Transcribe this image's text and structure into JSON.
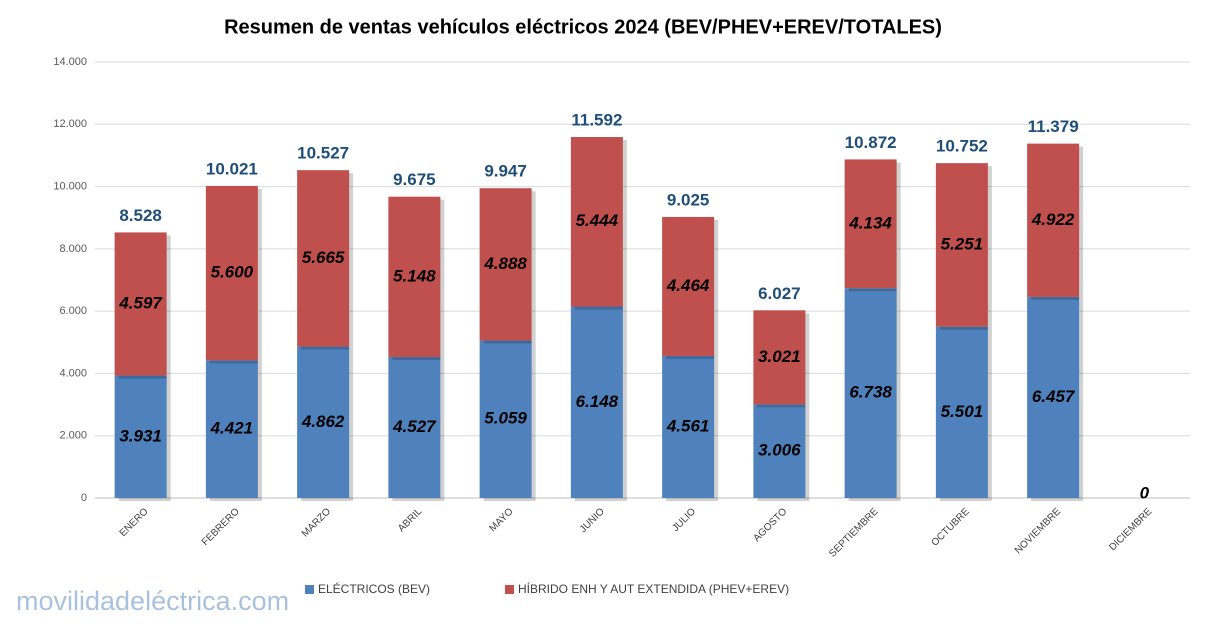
{
  "chart_data": {
    "type": "stacked_bar",
    "title": "Resumen de ventas vehículos eléctricos 2024 (BEV/PHEV+EREV/TOTALES)",
    "categories": [
      "ENERO",
      "FEBRERO",
      "MARZO",
      "ABRIL",
      "MAYO",
      "JUNIO",
      "JULIO",
      "AGOSTO",
      "SEPTIEMBRE",
      "OCTUBRE",
      "NOVIEMBRE",
      "DICIEMBRE"
    ],
    "series": [
      {
        "name": "ELÉCTRICOS (BEV)",
        "color": "#4f81bd",
        "values": [
          3931,
          4421,
          4862,
          4527,
          5059,
          6148,
          4561,
          3006,
          6738,
          5501,
          6457,
          0
        ],
        "value_labels": [
          "3.931",
          "4.421",
          "4.862",
          "4.527",
          "5.059",
          "6.148",
          "4.561",
          "3.006",
          "6.738",
          "5.501",
          "6.457",
          "0"
        ]
      },
      {
        "name": "HÍBRIDO ENH Y AUT EXTENDIDA (PHEV+EREV)",
        "color": "#c0504d",
        "values": [
          4597,
          5600,
          5665,
          5148,
          4888,
          5444,
          4464,
          3021,
          4134,
          5251,
          4922,
          null
        ],
        "value_labels": [
          "4.597",
          "5.600",
          "5.665",
          "5.148",
          "4.888",
          "5.444",
          "4.464",
          "3.021",
          "4.134",
          "5.251",
          "4.922",
          null
        ]
      }
    ],
    "totals": {
      "values": [
        8528,
        10021,
        10527,
        9675,
        9947,
        11592,
        9025,
        6027,
        10872,
        10752,
        11379,
        null
      ],
      "value_labels": [
        "8.528",
        "10.021",
        "10.527",
        "9.675",
        "9.947",
        "11.592",
        "9.025",
        "6.027",
        "10.872",
        "10.752",
        "11.379",
        null
      ],
      "color": "#1f4e79"
    },
    "ylim": [
      0,
      14000
    ],
    "yticks": [
      0,
      {
        "value": 2000,
        "label": "2.000"
      },
      {
        "value": 4000,
        "label": "4.000"
      },
      {
        "value": 6000,
        "label": "6.000"
      },
      {
        "value": 8000,
        "label": "8.000"
      },
      {
        "value": 10000,
        "label": "10.000"
      },
      {
        "value": 12000,
        "label": "12.000"
      },
      {
        "value": 14000,
        "label": "14.000"
      }
    ],
    "grid": true,
    "legend": "bottom",
    "watermark": "movilidadeléctrica.com"
  }
}
